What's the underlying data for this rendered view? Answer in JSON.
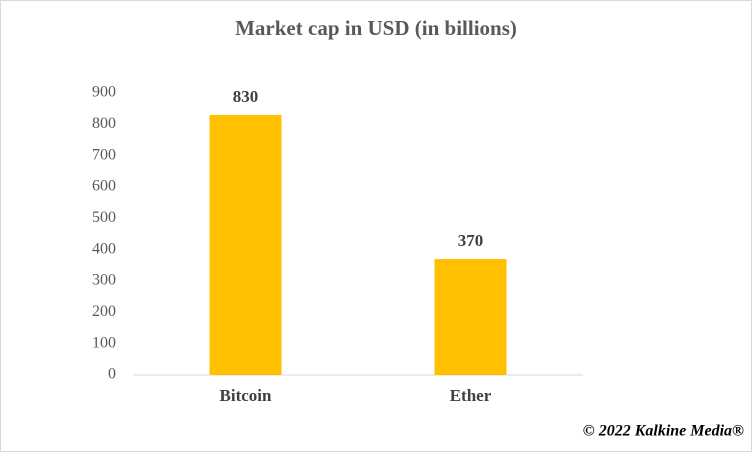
{
  "chart_data": {
    "type": "bar",
    "title": "Market cap in USD (in billions)",
    "categories": [
      "Bitcoin",
      "Ether"
    ],
    "values": [
      830,
      370
    ],
    "color": "#ffc000",
    "ylim": [
      0,
      900
    ],
    "yticks": [
      0,
      100,
      200,
      300,
      400,
      500,
      600,
      700,
      800,
      900
    ],
    "grid": false,
    "show_value_labels": true,
    "annotation": "© 2022 Kalkine Media®"
  }
}
